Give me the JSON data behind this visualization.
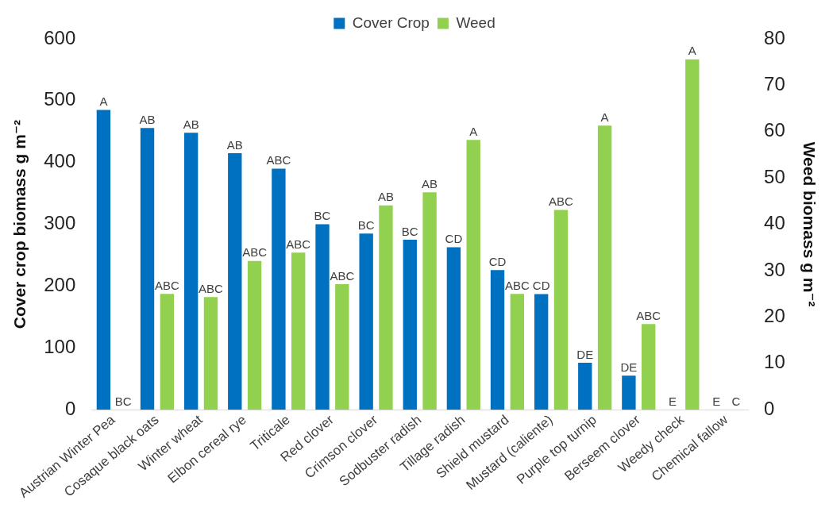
{
  "chart_data": {
    "type": "bar",
    "categories": [
      "Austrian Winter Pea",
      "Cosaque black oats",
      "Winter wheat",
      "Elbon cereal rye",
      "Triticale",
      "Red clover",
      "Crimson clover",
      "Sodbuster radish",
      "Tillage radish",
      "Shield mustard",
      "Mustard (caliente)",
      "Purple top turnip",
      "Berseem clover",
      "Weedy check",
      "Chemical fallow"
    ],
    "series": [
      {
        "name": "Cover Crop",
        "color": "#0070c0",
        "values": [
          485,
          456,
          448,
          415,
          390,
          300,
          285,
          275,
          263,
          226,
          187,
          76,
          55,
          0,
          0
        ],
        "value_labels": [
          "A",
          "AB",
          "AB",
          "AB",
          "ABC",
          "BC",
          "BC",
          "BC",
          "CD",
          "CD",
          "CD",
          "DE",
          "DE",
          "E",
          "E"
        ]
      },
      {
        "name": "Weed",
        "color": "#92d050",
        "axis": "y2",
        "values": [
          0,
          25,
          24.3,
          32.1,
          33.9,
          27.1,
          44.1,
          46.9,
          58.2,
          25,
          43.1,
          61.3,
          18.5,
          75.6,
          0
        ],
        "value_labels": [
          "BC",
          "ABC",
          "ABC",
          "ABC",
          "ABC",
          "ABC",
          "AB",
          "AB",
          "A",
          "ABC",
          "ABC",
          "A",
          "ABC",
          "A",
          "C"
        ]
      }
    ],
    "ylabel": "Cover crop biomass g m⁻²",
    "y2label": "Weed biomass g m⁻²",
    "ylim": [
      0,
      600
    ],
    "yticks": [
      0,
      100,
      200,
      300,
      400,
      500,
      600
    ],
    "y2lim": [
      0,
      80
    ],
    "y2ticks": [
      0,
      10,
      20,
      30,
      40,
      50,
      60,
      70,
      80
    ],
    "grid": false,
    "legend": "top"
  }
}
